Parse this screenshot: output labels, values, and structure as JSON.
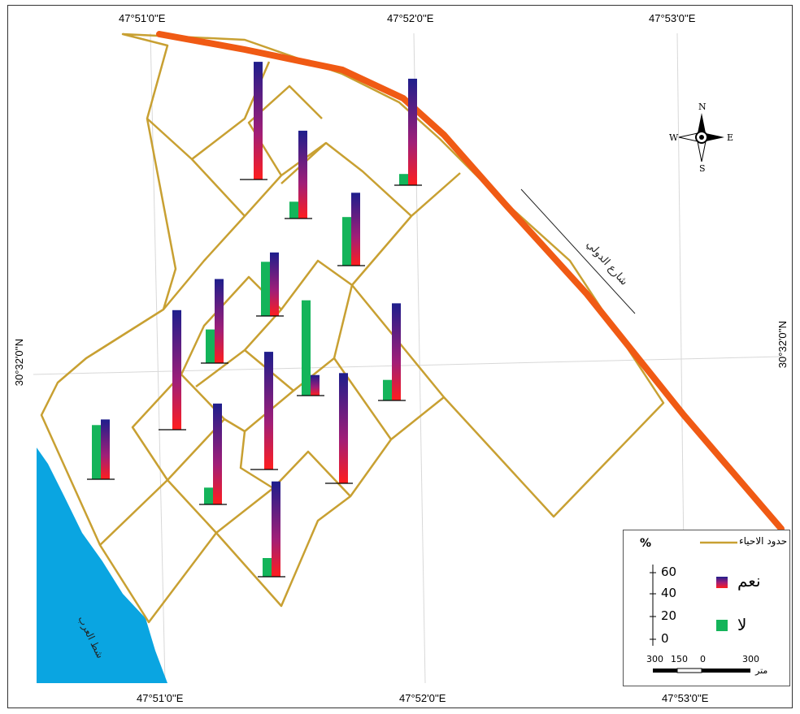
{
  "coordinates": {
    "top": [
      "47°51'0''E",
      "47°52'0''E",
      "47°53'0''E"
    ],
    "bottom": [
      "47°51'0''E",
      "47°52'0''E",
      "47°53'0''E"
    ],
    "left": "30°32'0''N",
    "right": "30°32'0''N"
  },
  "compass": {
    "n": "N",
    "s": "S",
    "e": "E",
    "w": "W"
  },
  "map_labels": {
    "road": "شارع الدولي",
    "river": "شط العرب"
  },
  "legend": {
    "boundary_label": "حدود الاحياء",
    "percent_symbol": "%",
    "scale_ticks": [
      "60",
      "40",
      "20",
      "0"
    ],
    "yes_label": "نعم",
    "no_label": "لا",
    "distance_ticks": [
      "300",
      "150",
      "0",
      "300"
    ],
    "distance_unit": "متر"
  },
  "colors": {
    "boundary": "#c8a032",
    "road": "#f05a14",
    "river": "#0aa5e1",
    "yes_top": "#1e1e8c",
    "yes_mid": "#a01e78",
    "yes_bottom": "#ff1e1e",
    "no": "#14b45a"
  },
  "chart_data": {
    "type": "bar",
    "title": "",
    "ylabel": "%",
    "ylim": [
      0,
      60
    ],
    "series_names": [
      "نعم",
      "لا"
    ],
    "neighborhoods": [
      {
        "yes": 63,
        "no": 0
      },
      {
        "yes": 47,
        "no": 9
      },
      {
        "yes": 39,
        "no": 26
      },
      {
        "yes": 57,
        "no": 6
      },
      {
        "yes": 34,
        "no": 29
      },
      {
        "yes": 45,
        "no": 18
      },
      {
        "yes": 64,
        "no": 0
      },
      {
        "yes": 11,
        "no": 51
      },
      {
        "yes": 52,
        "no": 11
      },
      {
        "yes": 32,
        "no": 29
      },
      {
        "yes": 63,
        "no": 0
      },
      {
        "yes": 54,
        "no": 9
      },
      {
        "yes": 59,
        "no": 0
      },
      {
        "yes": 51,
        "no": 10
      }
    ]
  }
}
